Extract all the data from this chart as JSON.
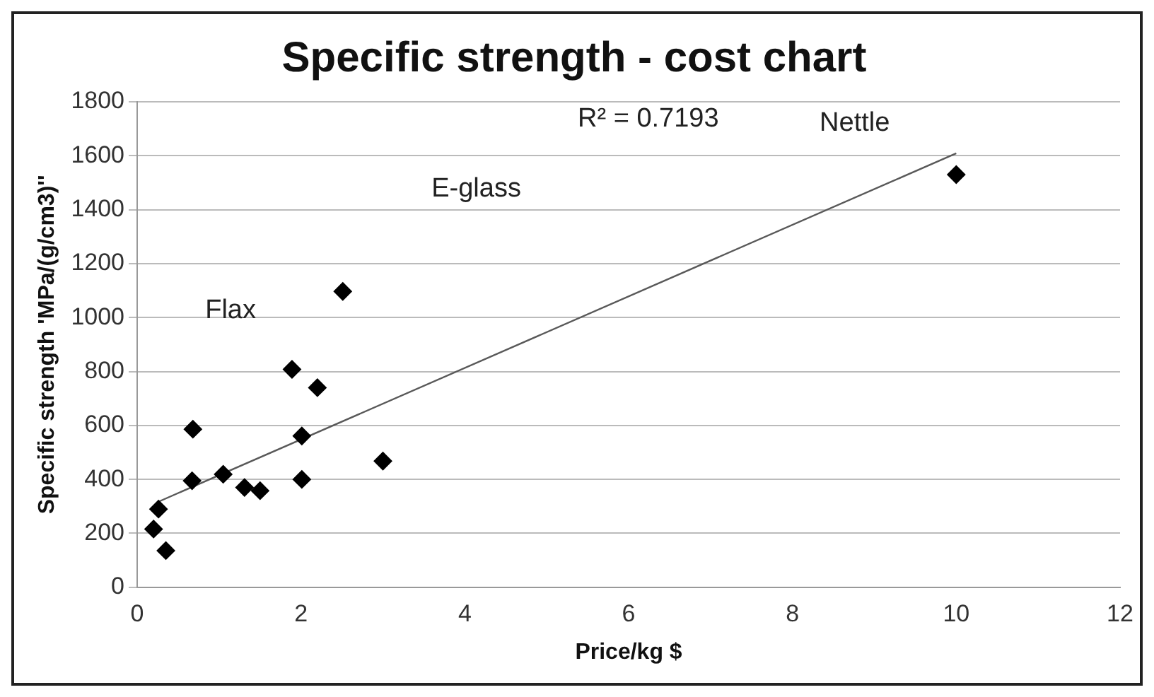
{
  "chart_data": {
    "type": "scatter",
    "title": "Specific strength - cost chart",
    "xlabel": "Price/kg $",
    "ylabel": "Specific strength 'MPa/(g/cm3)''",
    "xlim": [
      0,
      12
    ],
    "xticks": [
      0,
      2,
      4,
      6,
      8,
      10,
      12
    ],
    "ylim": [
      0,
      1800
    ],
    "yticks": [
      0,
      200,
      400,
      600,
      800,
      1000,
      1200,
      1400,
      1600,
      1800
    ],
    "grid": "y",
    "legend": false,
    "series": [
      {
        "marker": "diamond",
        "color": "#000000",
        "x": [
          0.2,
          0.26,
          0.35,
          0.67,
          0.68,
          1.05,
          1.31,
          1.5,
          1.89,
          2.01,
          2.01,
          2.2,
          2.51,
          3.0,
          10.0
        ],
        "values": [
          216,
          290,
          136,
          395,
          586,
          419,
          370,
          358,
          808,
          561,
          400,
          740,
          1097,
          468,
          1530
        ]
      },
      {
        "type": "line",
        "marker": "none",
        "color": "#595959",
        "x": [
          0.25,
          10.0
        ],
        "values": [
          316,
          1609
        ]
      }
    ],
    "annotations": [
      "Flax",
      "E-glass",
      "Nettle",
      "R² = 0.7193"
    ]
  }
}
